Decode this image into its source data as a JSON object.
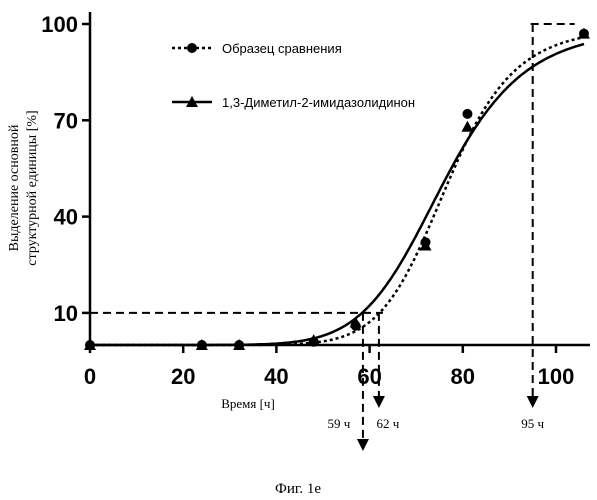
{
  "chart_data": {
    "type": "line",
    "title": "",
    "xlabel": "Время [ч]",
    "ylabel_line1": "Выделение основной",
    "ylabel_line2": "структурной единицы [%]",
    "xlim": [
      0,
      108
    ],
    "ylim": [
      0,
      100
    ],
    "x_ticks": [
      0,
      20,
      40,
      60,
      80,
      100
    ],
    "y_ticks": [
      10,
      40,
      70,
      100
    ],
    "grid": false,
    "legend_position": "top-center",
    "series": [
      {
        "name": "Образец сравнения",
        "line_style": "dotted",
        "marker": "circle",
        "curve": {
          "bottom": 0,
          "top": 99,
          "x50": 76.5,
          "hill": 10.5
        },
        "points": [
          {
            "x": 0,
            "y": 0
          },
          {
            "x": 24,
            "y": 0
          },
          {
            "x": 32,
            "y": 0
          },
          {
            "x": 48,
            "y": 1
          },
          {
            "x": 57,
            "y": 6
          },
          {
            "x": 72,
            "y": 32
          },
          {
            "x": 81,
            "y": 72
          },
          {
            "x": 106,
            "y": 97
          }
        ]
      },
      {
        "name": "1,3-Диметил-2-имидазолидинон",
        "line_style": "solid",
        "marker": "triangle",
        "curve": {
          "bottom": 0,
          "top": 99,
          "x50": 75.5,
          "hill": 8.5
        },
        "points": [
          {
            "x": 0,
            "y": 0
          },
          {
            "x": 24,
            "y": 0
          },
          {
            "x": 32,
            "y": 0
          },
          {
            "x": 48,
            "y": 1.5
          },
          {
            "x": 57,
            "y": 7
          },
          {
            "x": 72,
            "y": 31
          },
          {
            "x": 81,
            "y": 68
          },
          {
            "x": 106,
            "y": 97
          }
        ]
      }
    ],
    "annotations": [
      {
        "label": "59 ч",
        "x": 59,
        "level": 10
      },
      {
        "label": "62 ч",
        "x": 62,
        "level": 10
      },
      {
        "label": "95 ч",
        "x": 95,
        "level": 100
      }
    ]
  },
  "caption": "Фиг. 1е"
}
